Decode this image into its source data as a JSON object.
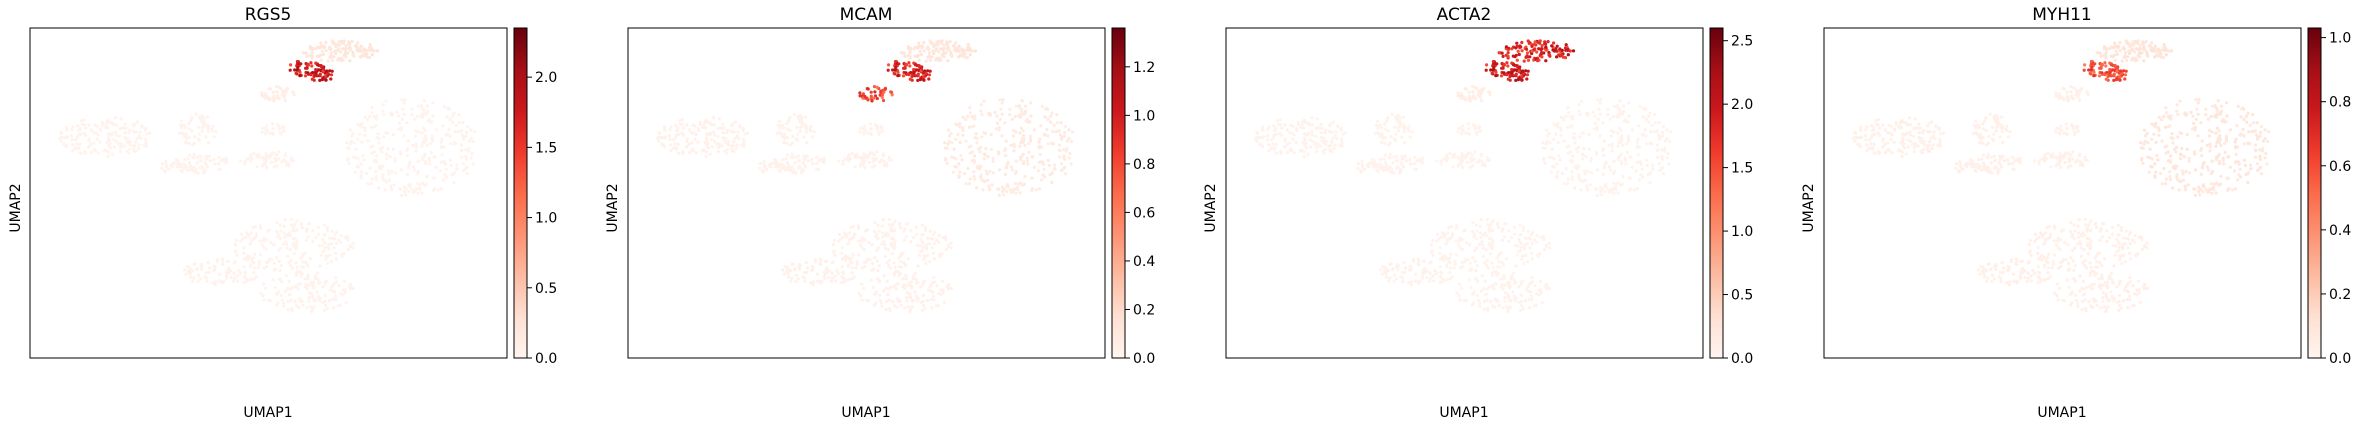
{
  "chart_data": [
    {
      "type": "scatter",
      "title": "RGS5",
      "xlabel": "UMAP1",
      "ylabel": "UMAP2",
      "colormap": "Reds",
      "colorbar": {
        "min": 0.0,
        "max": 2.35,
        "ticks": [
          0.0,
          0.5,
          1.0,
          1.5,
          2.0
        ],
        "tick_labels": [
          "0.0",
          "0.5",
          "1.0",
          "1.5",
          "2.0"
        ]
      },
      "highlight_clusters": [
        {
          "cluster": "lower-top",
          "level": 2.1
        },
        {
          "cluster": "upper-top",
          "level": 0.25
        },
        {
          "cluster": "small-top",
          "level": 0.12
        }
      ],
      "background_level": 0.05
    },
    {
      "type": "scatter",
      "title": "MCAM",
      "xlabel": "UMAP1",
      "ylabel": "UMAP2",
      "colormap": "Reds",
      "colorbar": {
        "min": 0.0,
        "max": 1.36,
        "ticks": [
          0.0,
          0.2,
          0.4,
          0.6,
          0.8,
          1.0,
          1.2
        ],
        "tick_labels": [
          "0.0",
          "0.2",
          "0.4",
          "0.6",
          "0.8",
          "1.0",
          "1.2"
        ]
      },
      "highlight_clusters": [
        {
          "cluster": "lower-top",
          "level": 1.15
        },
        {
          "cluster": "small-top",
          "level": 0.95
        },
        {
          "cluster": "upper-top",
          "level": 0.15
        },
        {
          "cluster": "right-large",
          "level": 0.1
        }
      ],
      "background_level": 0.04
    },
    {
      "type": "scatter",
      "title": "ACTA2",
      "xlabel": "UMAP1",
      "ylabel": "UMAP2",
      "colormap": "Reds",
      "colorbar": {
        "min": 0.0,
        "max": 2.6,
        "ticks": [
          0.0,
          0.5,
          1.0,
          1.5,
          2.0,
          2.5
        ],
        "tick_labels": [
          "0.0",
          "0.5",
          "1.0",
          "1.5",
          "2.0",
          "2.5"
        ]
      },
      "highlight_clusters": [
        {
          "cluster": "upper-top",
          "level": 2.2
        },
        {
          "cluster": "lower-top",
          "level": 2.3
        },
        {
          "cluster": "small-top",
          "level": 0.15
        }
      ],
      "background_level": 0.06
    },
    {
      "type": "scatter",
      "title": "MYH11",
      "xlabel": "UMAP1",
      "ylabel": "UMAP2",
      "colormap": "Reds",
      "colorbar": {
        "min": 0.0,
        "max": 1.03,
        "ticks": [
          0.0,
          0.2,
          0.4,
          0.6,
          0.8,
          1.0
        ],
        "tick_labels": [
          "0.0",
          "0.2",
          "0.4",
          "0.6",
          "0.8",
          "1.0"
        ]
      },
      "highlight_clusters": [
        {
          "cluster": "lower-top",
          "level": 0.7
        },
        {
          "cluster": "upper-top",
          "level": 0.12
        },
        {
          "cluster": "right-large",
          "level": 0.1
        }
      ],
      "background_level": 0.04
    }
  ]
}
